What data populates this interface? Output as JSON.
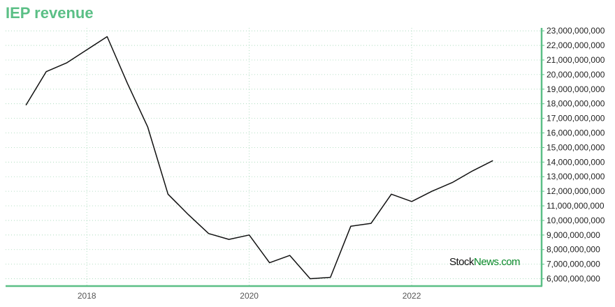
{
  "title": "IEP revenue",
  "watermark": {
    "part1": "Stock",
    "part2": "News",
    "part3": ".com"
  },
  "colors": {
    "title": "#5bbf86",
    "axis": "#5bbf86",
    "grid": "#9fd6b4",
    "line": "#111111",
    "watermark_dark": "#111111",
    "watermark_green": "#0a8a2a"
  },
  "chart_data": {
    "type": "line",
    "title": "IEP revenue",
    "xlabel": "",
    "ylabel": "",
    "grid": true,
    "legend": "none",
    "xlim": [
      2017.0,
      2023.6
    ],
    "ylim": [
      5500000000,
      23200000000
    ],
    "x_ticks": [
      2018,
      2020,
      2022
    ],
    "y_ticks": [
      6000000000,
      7000000000,
      8000000000,
      9000000000,
      10000000000,
      11000000000,
      12000000000,
      13000000000,
      14000000000,
      15000000000,
      16000000000,
      17000000000,
      18000000000,
      19000000000,
      20000000000,
      21000000000,
      22000000000,
      23000000000
    ],
    "y_tick_labels": [
      "6,000,000,000",
      "7,000,000,000",
      "8,000,000,000",
      "9,000,000,000",
      "10,000,000,000",
      "11,000,000,000",
      "12,000,000,000",
      "13,000,000,000",
      "14,000,000,000",
      "15,000,000,000",
      "16,000,000,000",
      "17,000,000,000",
      "18,000,000,000",
      "19,000,000,000",
      "20,000,000,000",
      "21,000,000,000",
      "22,000,000,000",
      "23,000,000,000"
    ],
    "series": [
      {
        "x": [
          2017.25,
          2017.5,
          2017.75,
          2018.0,
          2018.25,
          2018.5,
          2018.75,
          2019.0,
          2019.25,
          2019.5,
          2019.75,
          2020.0,
          2020.25,
          2020.5,
          2020.75,
          2021.0,
          2021.25,
          2021.5,
          2021.75,
          2022.0,
          2022.25,
          2022.5,
          2022.75,
          2023.0
        ],
        "values": [
          17900000000,
          20200000000,
          20800000000,
          21700000000,
          22600000000,
          19400000000,
          16400000000,
          11800000000,
          10400000000,
          9100000000,
          8700000000,
          9000000000,
          7100000000,
          7600000000,
          6000000000,
          6100000000,
          9600000000,
          9800000000,
          11800000000,
          11300000000,
          12000000000,
          12600000000,
          13400000000,
          14100000000
        ]
      }
    ]
  }
}
